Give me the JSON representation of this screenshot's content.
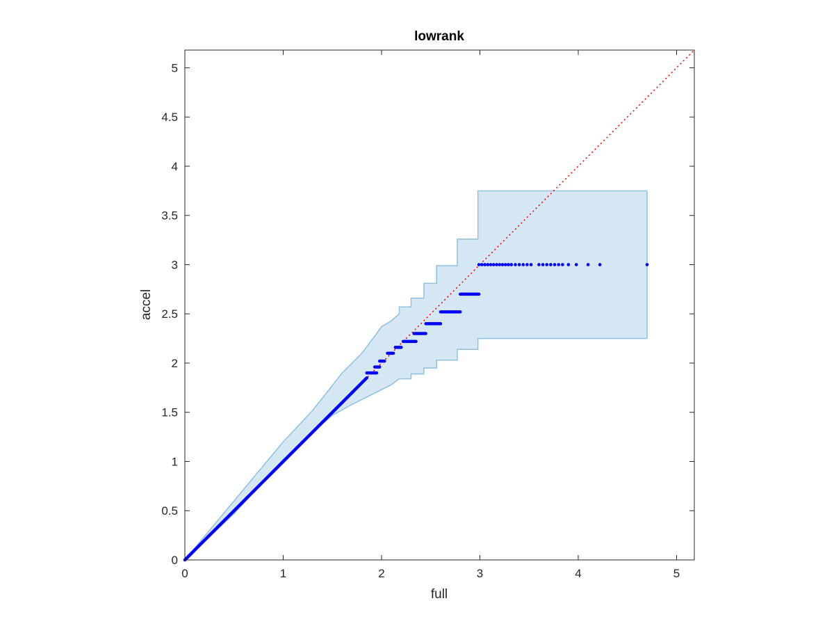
{
  "chart_data": {
    "type": "scatter",
    "title": "lowrank",
    "xlabel": "full",
    "ylabel": "accel",
    "xlim": [
      0,
      5.18
    ],
    "ylim": [
      0,
      5.18
    ],
    "xticks": [
      0,
      1,
      2,
      3,
      4,
      5
    ],
    "yticks": [
      0,
      0.5,
      1,
      1.5,
      2,
      2.5,
      3,
      3.5,
      4,
      4.5,
      5
    ],
    "xtick_labels": [
      "0",
      "1",
      "2",
      "3",
      "4",
      "5"
    ],
    "ytick_labels": [
      "0",
      "0.5",
      "1",
      "1.5",
      "2",
      "2.5",
      "3",
      "3.5",
      "4",
      "4.5",
      "5"
    ],
    "grid": false,
    "reference_line": {
      "style": "dotted",
      "color": "#ff0000",
      "from": [
        0,
        0
      ],
      "to": [
        5.18,
        5.18
      ]
    },
    "band": {
      "fill": "#d6e7f4",
      "stroke": "#8fc0e0",
      "upper": [
        [
          0,
          0
        ],
        [
          0.5,
          0.6
        ],
        [
          1.0,
          1.2
        ],
        [
          1.3,
          1.52
        ],
        [
          1.6,
          1.9
        ],
        [
          1.8,
          2.1
        ],
        [
          1.95,
          2.3
        ],
        [
          2.0,
          2.37
        ],
        [
          2.1,
          2.43
        ],
        [
          2.18,
          2.5
        ],
        [
          2.18,
          2.57
        ],
        [
          2.3,
          2.57
        ],
        [
          2.3,
          2.66
        ],
        [
          2.43,
          2.66
        ],
        [
          2.43,
          2.81
        ],
        [
          2.56,
          2.81
        ],
        [
          2.56,
          2.99
        ],
        [
          2.77,
          2.99
        ],
        [
          2.77,
          3.26
        ],
        [
          2.98,
          3.26
        ],
        [
          2.98,
          3.75
        ],
        [
          4.7,
          3.75
        ]
      ],
      "lower": [
        [
          4.7,
          2.25
        ],
        [
          2.98,
          2.25
        ],
        [
          2.98,
          2.14
        ],
        [
          2.77,
          2.14
        ],
        [
          2.77,
          2.03
        ],
        [
          2.56,
          2.03
        ],
        [
          2.56,
          1.95
        ],
        [
          2.43,
          1.95
        ],
        [
          2.43,
          1.89
        ],
        [
          2.3,
          1.89
        ],
        [
          2.3,
          1.84
        ],
        [
          2.18,
          1.84
        ],
        [
          2.1,
          1.78
        ],
        [
          2.0,
          1.73
        ],
        [
          1.9,
          1.68
        ],
        [
          1.7,
          1.58
        ],
        [
          1.5,
          1.47
        ],
        [
          1.3,
          1.3
        ],
        [
          1.0,
          1.02
        ],
        [
          0.5,
          0.47
        ],
        [
          0,
          0
        ]
      ]
    },
    "point_color": "#0000ff",
    "series": [
      {
        "diagonal_segments": [
          [
            0.0,
            0.05
          ],
          [
            0.05,
            0.3
          ],
          [
            0.3,
            0.6
          ],
          [
            0.6,
            0.9
          ],
          [
            0.9,
            1.2
          ],
          [
            1.2,
            1.5
          ],
          [
            1.5,
            1.7
          ],
          [
            1.7,
            1.85
          ]
        ],
        "steps": [
          {
            "y": 1.9,
            "x": [
              1.85,
              1.95
            ]
          },
          {
            "y": 1.96,
            "x": [
              1.93,
              1.98
            ]
          },
          {
            "y": 2.02,
            "x": [
              1.98,
              2.03
            ]
          },
          {
            "y": 2.1,
            "x": [
              2.06,
              2.12
            ]
          },
          {
            "y": 2.16,
            "x": [
              2.14,
              2.2
            ]
          },
          {
            "y": 2.22,
            "x": [
              2.22,
              2.35
            ]
          },
          {
            "y": 2.3,
            "x": [
              2.33,
              2.45
            ]
          },
          {
            "y": 2.4,
            "x": [
              2.45,
              2.6
            ]
          },
          {
            "y": 2.52,
            "x": [
              2.6,
              2.8
            ]
          },
          {
            "y": 2.7,
            "x": [
              2.8,
              2.99
            ]
          }
        ],
        "row_at_3": [
          2.99,
          3.02,
          3.05,
          3.08,
          3.11,
          3.14,
          3.17,
          3.2,
          3.23,
          3.26,
          3.29,
          3.32,
          3.36,
          3.4,
          3.44,
          3.48,
          3.52,
          3.6,
          3.64,
          3.68,
          3.72,
          3.76,
          3.8,
          3.84,
          3.9,
          3.98,
          4.1,
          4.22,
          4.7
        ]
      }
    ]
  }
}
